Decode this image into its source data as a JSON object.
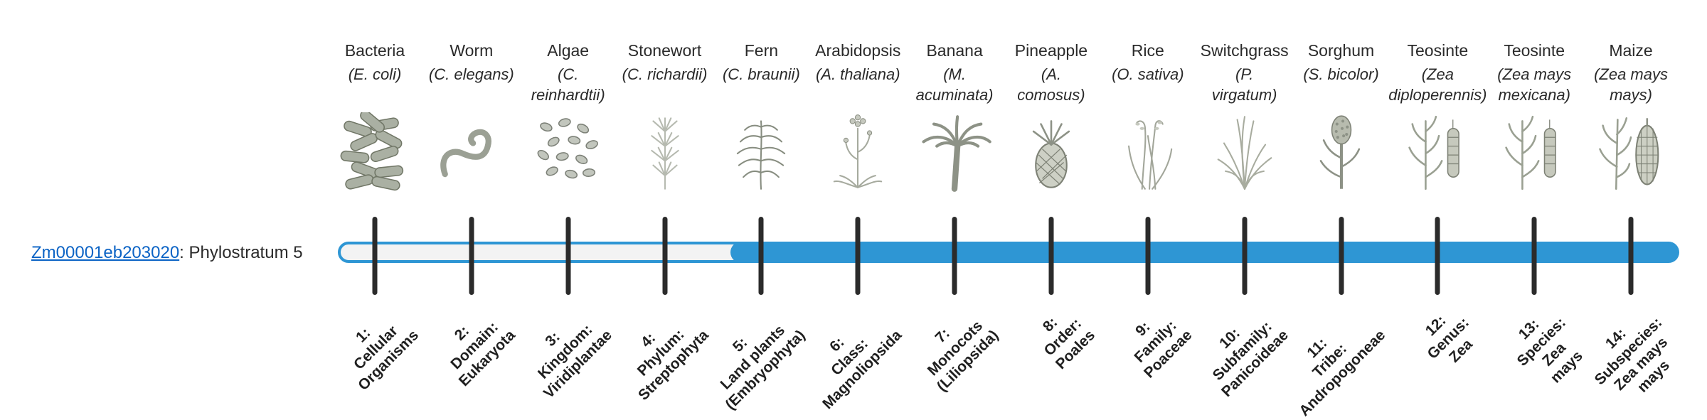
{
  "gene": {
    "id": "Zm00001eb203020",
    "suffix": ": Phylostratum 5",
    "link_color": "#0b63c5"
  },
  "track": {
    "fill_color": "#2e96d4",
    "empty_fill": "#f3f3f3",
    "highlighted_stratum": 5,
    "total_strata": 14
  },
  "phylostrata": [
    {
      "number": 1,
      "organism": "Bacteria",
      "scientific_name": "(E. coli)",
      "icon": "bacteria",
      "stratum_label": "1:\nCellular\nOrganisms"
    },
    {
      "number": 2,
      "organism": "Worm",
      "scientific_name": "(C. elegans)",
      "icon": "worm",
      "stratum_label": "2:\nDomain:\nEukaryota"
    },
    {
      "number": 3,
      "organism": "Algae",
      "scientific_name": "(C.\nreinhardtii)",
      "icon": "algae",
      "stratum_label": "3:\nKingdom:\nViridiplantae"
    },
    {
      "number": 4,
      "organism": "Stonewort",
      "scientific_name": "(C. richardii)",
      "icon": "stonewort",
      "stratum_label": "4:\nPhylum:\nStreptophyta"
    },
    {
      "number": 5,
      "organism": "Fern",
      "scientific_name": "(C. braunii)",
      "icon": "fern",
      "stratum_label": "5:\nLand plants\n(Embryophyta)"
    },
    {
      "number": 6,
      "organism": "Arabidopsis",
      "scientific_name": "(A. thaliana)",
      "icon": "arabidopsis",
      "stratum_label": "6:\nClass:\nMagnoliopsida"
    },
    {
      "number": 7,
      "organism": "Banana",
      "scientific_name": "(M.\nacuminata)",
      "icon": "banana",
      "stratum_label": "7:\nMonocots\n(Liliopsida)"
    },
    {
      "number": 8,
      "organism": "Pineapple",
      "scientific_name": "(A.\ncomosus)",
      "icon": "pineapple",
      "stratum_label": "8:\nOrder:\nPoales"
    },
    {
      "number": 9,
      "organism": "Rice",
      "scientific_name": "(O. sativa)",
      "icon": "rice",
      "stratum_label": "9:\nFamily:\nPoaceae"
    },
    {
      "number": 10,
      "organism": "Switchgrass",
      "scientific_name": "(P.\nvirgatum)",
      "icon": "switchgrass",
      "stratum_label": "10:\nSubfamily:\nPanicoideae"
    },
    {
      "number": 11,
      "organism": "Sorghum",
      "scientific_name": "(S. bicolor)",
      "icon": "sorghum",
      "stratum_label": "11:\nTribe:\nAndropogoneae"
    },
    {
      "number": 12,
      "organism": "Teosinte",
      "scientific_name": "(Zea\ndiploperennis)",
      "icon": "teosinte",
      "stratum_label": "12:\nGenus:\nZea"
    },
    {
      "number": 13,
      "organism": "Teosinte",
      "scientific_name": "(Zea mays\nmexicana)",
      "icon": "teosinte",
      "stratum_label": "13:\nSpecies:\nZea\nmays"
    },
    {
      "number": 14,
      "organism": "Maize",
      "scientific_name": "(Zea mays\nmays)",
      "icon": "maize",
      "stratum_label": "14:\nSubspecies:\nZea mays\nmays"
    }
  ]
}
